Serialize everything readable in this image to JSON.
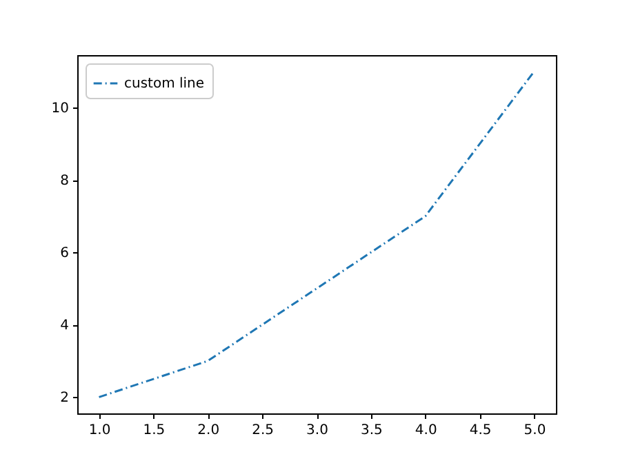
{
  "chart_data": {
    "type": "line",
    "x": [
      1,
      2,
      3,
      4,
      5
    ],
    "series": [
      {
        "name": "custom line",
        "color": "#1f77b4",
        "values": [
          2,
          3,
          5,
          7,
          11
        ]
      }
    ],
    "xlim": [
      0.8,
      5.2
    ],
    "xticks": [
      {
        "value": 1,
        "label": "1.0"
      },
      {
        "value": 1.5,
        "label": "1.5"
      },
      {
        "value": 2,
        "label": "2.0"
      },
      {
        "value": 2.5,
        "label": "2.5"
      },
      {
        "value": 3,
        "label": "3.0"
      },
      {
        "value": 3.5,
        "label": "3.5"
      },
      {
        "value": 4,
        "label": "4.0"
      },
      {
        "value": 4.5,
        "label": "4.5"
      },
      {
        "value": 5,
        "label": "5.0"
      }
    ],
    "ylim": [
      1.55,
      11.45
    ],
    "yticks": [
      2,
      4,
      6,
      8,
      10
    ],
    "legend": "top left",
    "line_style": "dashed",
    "marker": "none",
    "grid": false
  }
}
